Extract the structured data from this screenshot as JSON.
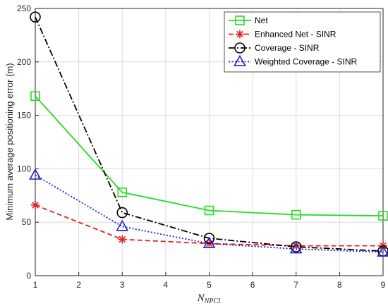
{
  "chart_data": {
    "type": "line",
    "xlabel": "N",
    "xlabel_sub": "NPCI",
    "ylabel": "Minimum average positioning error (m)",
    "xlim": [
      1,
      9
    ],
    "ylim": [
      0,
      250
    ],
    "x_ticks": [
      "1",
      "2",
      "3",
      "4",
      "5",
      "6",
      "7",
      "8",
      "9"
    ],
    "y_ticks": [
      "0",
      "50",
      "100",
      "150",
      "200",
      "250"
    ],
    "grid": true,
    "legend_position": "top-right",
    "x": [
      1,
      3,
      5,
      7,
      9
    ],
    "series": [
      {
        "name": "Net",
        "values": [
          168,
          78,
          61,
          57,
          56
        ],
        "color": "#22dd22",
        "dash": "solid",
        "marker": "square"
      },
      {
        "name": "Enhanced Net - SINR",
        "values": [
          66,
          34,
          30,
          28,
          28
        ],
        "color": "#dd2222",
        "dash": "dashed",
        "marker": "asterisk"
      },
      {
        "name": "Coverage - SINR",
        "values": [
          242,
          59,
          35,
          27,
          23
        ],
        "color": "#000000",
        "dash": "dashdot",
        "marker": "circle"
      },
      {
        "name": "Weighted Coverage - SINR",
        "values": [
          94,
          46,
          30,
          25,
          22
        ],
        "color": "#1f1fcc",
        "dash": "dotted",
        "marker": "triangle"
      }
    ]
  }
}
